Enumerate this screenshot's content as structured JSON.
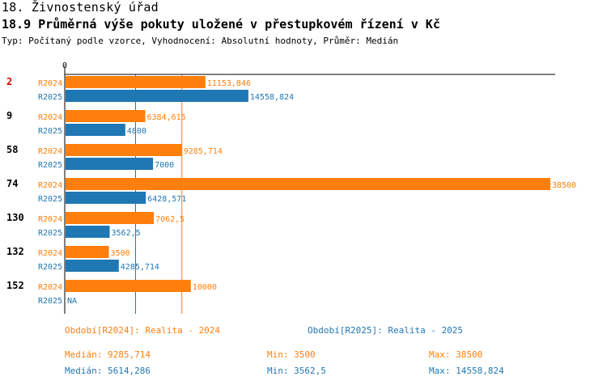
{
  "header": {
    "section": "18. Živnostenský úřad",
    "title": "18.9 Průměrná výše pokuty uložené v přestupkovém řízení v Kč",
    "subtitle": "Typ: Počítaný podle vzorce, Vyhodnocení: Absolutní hodnoty, Průměr: Medián"
  },
  "colors": {
    "r2024": "#ff7f0e",
    "r2025": "#1f77b4",
    "highlight": "#e00000",
    "axis": "#000000"
  },
  "chart_data": {
    "type": "bar",
    "orientation": "horizontal",
    "axis_zero_label": "0",
    "xlim": [
      0,
      38500
    ],
    "categories": [
      {
        "label": "2",
        "highlight": true
      },
      {
        "label": "9",
        "highlight": false
      },
      {
        "label": "58",
        "highlight": false
      },
      {
        "label": "74",
        "highlight": false
      },
      {
        "label": "130",
        "highlight": false
      },
      {
        "label": "132",
        "highlight": false
      },
      {
        "label": "152",
        "highlight": false
      }
    ],
    "series": [
      {
        "name": "R2024",
        "color": "#ff7f0e",
        "values": [
          11153.846,
          6384.615,
          9285.714,
          38500,
          7062.5,
          3500,
          10000
        ],
        "labels": [
          "11153,846",
          "6384,615",
          "9285,714",
          "38500",
          "7062,5",
          "3500",
          "10000"
        ]
      },
      {
        "name": "R2025",
        "color": "#1f77b4",
        "values": [
          14558.824,
          4800,
          7000,
          6428.571,
          3562.5,
          4285.714,
          null
        ],
        "labels": [
          "14558,824",
          "4800",
          "7000",
          "6428,571",
          "3562,5",
          "4285,714",
          "NA"
        ]
      }
    ],
    "median_lines": [
      {
        "series": "R2024",
        "value": 9285.714
      },
      {
        "series": "R2025",
        "value": 5614.286
      }
    ]
  },
  "legend": {
    "r2024": "Období[R2024]: Realita - 2024",
    "r2025": "Období[R2025]: Realita - 2025"
  },
  "stats": {
    "r2024": {
      "median": "Medián: 9285,714",
      "min": "Min: 3500",
      "max": "Max: 38500"
    },
    "r2025": {
      "median": "Medián: 5614,286",
      "min": "Min: 3562,5",
      "max": "Max: 14558,824"
    }
  }
}
